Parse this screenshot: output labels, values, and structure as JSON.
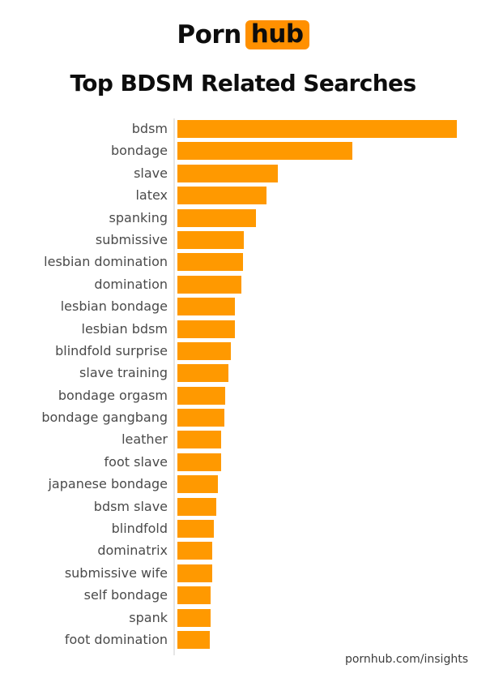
{
  "logo": {
    "word1": "Porn",
    "word2": "hub"
  },
  "title": "Top BDSM Related Searches",
  "footer": {
    "url_text": "pornhub.com/insights"
  },
  "colors": {
    "background": "#ffffff",
    "bar_orange": "#ff9900",
    "logo_badge_orange": "#ff9000",
    "ink_black": "#0d0d0d",
    "label_gray": "#4a4a4a",
    "axis_gray": "#e6e6e6",
    "footer_gray": "#3d3d3d"
  },
  "chart_data": {
    "type": "bar",
    "orientation": "horizontal",
    "title": "Top BDSM Related Searches",
    "categories": [
      "bdsm",
      "bondage",
      "slave",
      "latex",
      "spanking",
      "submissive",
      "lesbian domination",
      "domination",
      "lesbian bondage",
      "lesbian bdsm",
      "blindfold surprise",
      "slave training",
      "bondage orgasm",
      "bondage gangbang",
      "leather",
      "foot slave",
      "japanese bondage",
      "bdsm slave",
      "blindfold",
      "dominatrix",
      "submissive wife",
      "self bondage",
      "spank",
      "foot domination"
    ],
    "values": [
      100,
      62.7,
      35.9,
      31.8,
      28.0,
      23.9,
      23.6,
      23.0,
      20.7,
      20.7,
      19.2,
      18.4,
      17.2,
      16.9,
      15.7,
      15.7,
      14.6,
      14.0,
      13.1,
      12.5,
      12.5,
      12.0,
      12.0,
      11.7
    ],
    "value_unit": "relative search volume, % of top term (bars unlabeled in image)",
    "xlim": [
      0,
      100
    ],
    "grid": false,
    "legend": false,
    "value_axis_ticks_shown": false,
    "bar_color": "#ff9900"
  }
}
